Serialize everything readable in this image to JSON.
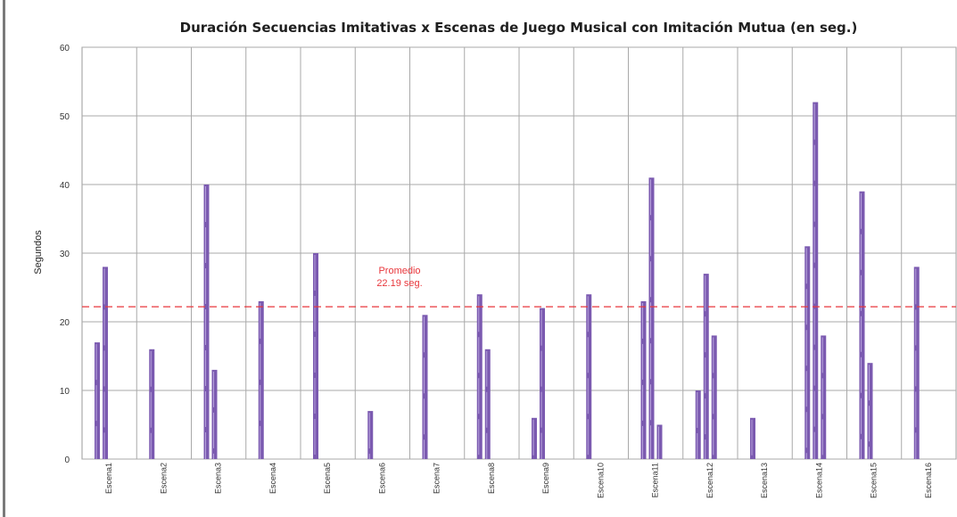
{
  "chart_data": {
    "type": "bar",
    "title": "Duración Secuencias Imitativas x Escenas de Juego Musical con Imitación Mutua (en seg.)",
    "ylabel": "Segundos",
    "xlabel": "",
    "ylim": [
      0,
      60
    ],
    "yticks": [
      "0",
      "10",
      "20",
      "30",
      "40",
      "50",
      "60"
    ],
    "grid": true,
    "categories": [
      "Escena1",
      "Escena2",
      "Escena3",
      "Escena4",
      "Escena5",
      "Escena6",
      "Escena7",
      "Escena8",
      "Escena9",
      "Escena10",
      "Escena11",
      "Escena12",
      "Escena13",
      "Escena14",
      "Escena15",
      "Escena16"
    ],
    "values": [
      [
        17,
        28
      ],
      [
        16
      ],
      [
        40,
        13
      ],
      [
        23
      ],
      [
        30
      ],
      [
        7
      ],
      [
        21
      ],
      [
        24,
        16
      ],
      [
        6,
        22
      ],
      [
        24
      ],
      [
        23,
        41,
        5
      ],
      [
        10,
        27,
        18
      ],
      [
        6
      ],
      [
        31,
        52,
        18
      ],
      [
        39,
        14
      ],
      [
        28
      ]
    ],
    "reference_line": {
      "value": 22.19,
      "label_line1": "Promedio",
      "label_line2": "22.19 seg.",
      "color": "#e8363b"
    },
    "bar_color": "#7b5ab0"
  }
}
